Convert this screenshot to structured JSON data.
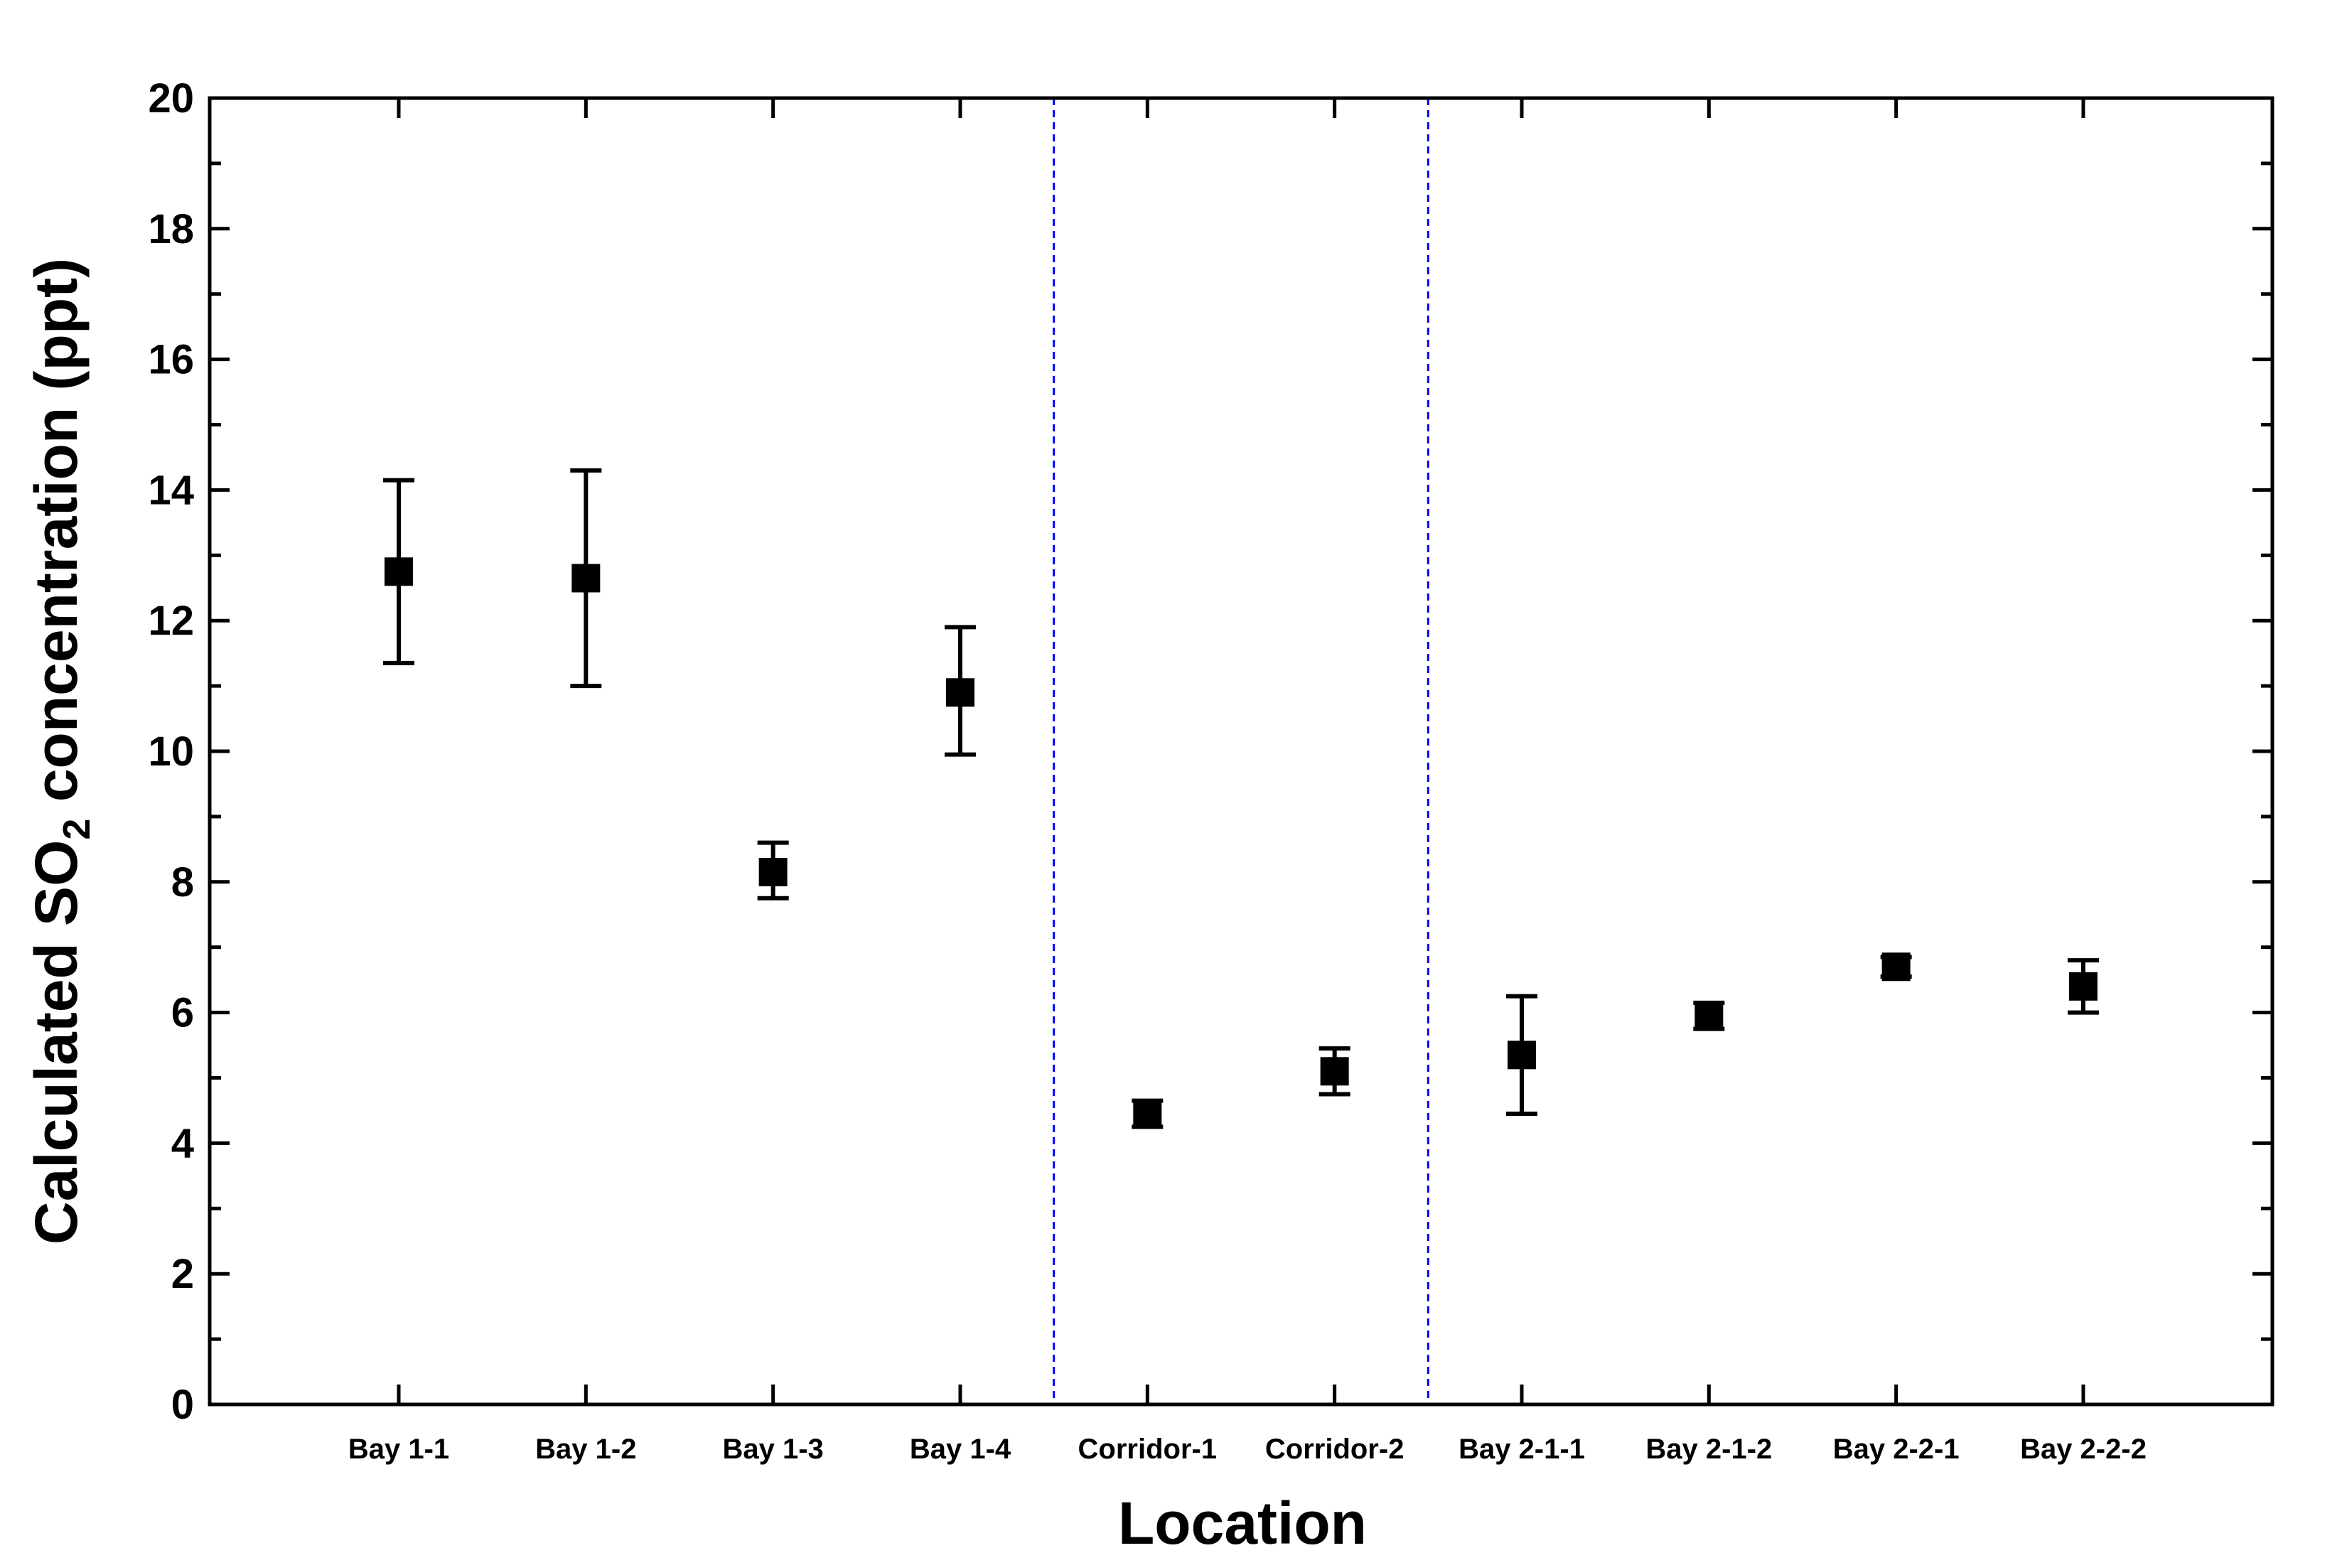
{
  "chart_data": {
    "type": "scatter",
    "title": "",
    "xlabel": "Location",
    "ylabel": {
      "prefix": "Calculated SO",
      "subscript": "2",
      "suffix": " concentration (ppt)"
    },
    "ylim": [
      0,
      20
    ],
    "yticks": [
      "0",
      "2",
      "4",
      "6",
      "8",
      "10",
      "12",
      "14",
      "16",
      "18",
      "20"
    ],
    "y_minor_step": 1,
    "categories": [
      "Bay 1-1",
      "Bay 1-2",
      "Bay 1-3",
      "Bay 1-4",
      "Corridor-1",
      "Corridor-2",
      "Bay 2-1-1",
      "Bay 2-1-2",
      "Bay 2-2-1",
      "Bay 2-2-2"
    ],
    "values": [
      12.75,
      12.65,
      8.15,
      10.9,
      4.45,
      5.1,
      5.35,
      5.95,
      6.7,
      6.4
    ],
    "err_low": [
      11.35,
      11.0,
      7.75,
      9.95,
      4.25,
      4.75,
      4.45,
      5.75,
      6.55,
      6.0
    ],
    "err_high": [
      14.15,
      14.3,
      8.6,
      11.9,
      4.65,
      5.45,
      6.25,
      6.15,
      6.85,
      6.8
    ],
    "dividers_after_category": [
      4,
      6
    ],
    "marker_color": "#000000",
    "divider_color": "#0000ff",
    "grid": false,
    "legend": "none"
  }
}
